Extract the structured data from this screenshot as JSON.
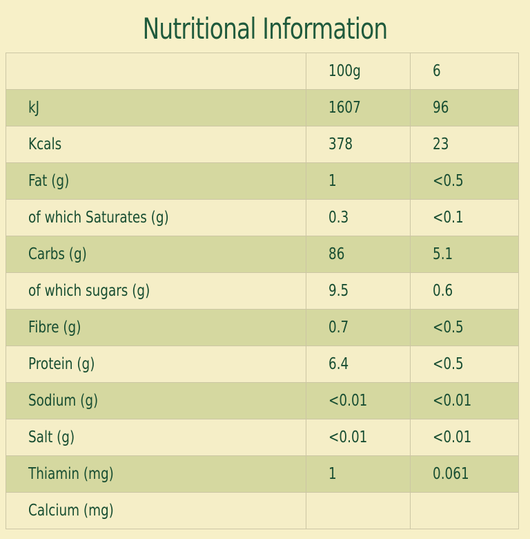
{
  "title": "Nutritional Information",
  "colors": {
    "background": "#f7f0c8",
    "stripe": "#d5d8a0",
    "text": "#174d31",
    "title": "#1f5a3c"
  },
  "header": {
    "label": "",
    "per100": "100g",
    "perServing": "6"
  },
  "rows": [
    {
      "label": "kJ",
      "per100": "1607",
      "perServing": "96"
    },
    {
      "label": "Kcals",
      "per100": "378",
      "perServing": "23"
    },
    {
      "label": "Fat (g)",
      "per100": "1",
      "perServing": "<0.5"
    },
    {
      "label": "of which Saturates (g)",
      "per100": "0.3",
      "perServing": "<0.1"
    },
    {
      "label": "Carbs (g)",
      "per100": "86",
      "perServing": "5.1"
    },
    {
      "label": "of which sugars (g)",
      "per100": "9.5",
      "perServing": "0.6"
    },
    {
      "label": "Fibre (g)",
      "per100": "0.7",
      "perServing": "<0.5"
    },
    {
      "label": "Protein (g)",
      "per100": "6.4",
      "perServing": "<0.5"
    },
    {
      "label": "Sodium (g)",
      "per100": "<0.01",
      "perServing": "<0.01"
    },
    {
      "label": "Salt (g)",
      "per100": "<0.01",
      "perServing": "<0.01"
    },
    {
      "label": "Thiamin (mg)",
      "per100": "1",
      "perServing": "0.061"
    },
    {
      "label": "Calcium (mg)",
      "per100": "",
      "perServing": ""
    }
  ]
}
